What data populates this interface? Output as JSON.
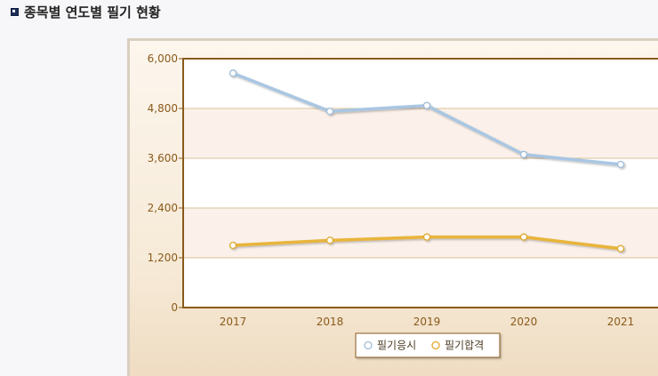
{
  "page": {
    "title": "종목별 연도별 필기 현황"
  },
  "chart_data": {
    "type": "line",
    "title": "",
    "xlabel": "",
    "ylabel": "",
    "categories": [
      "2017",
      "2018",
      "2019",
      "2020",
      "2021"
    ],
    "ylim": [
      0,
      6000
    ],
    "yticks": [
      0,
      1200,
      2400,
      3600,
      4800,
      6000
    ],
    "ytick_labels": [
      "0",
      "1,200",
      "2,400",
      "3,600",
      "4,800",
      "6,000"
    ],
    "grid": true,
    "legend_position": "bottom-center",
    "series": [
      {
        "name": "필기응시",
        "values": [
          5650,
          4730,
          4870,
          3690,
          3450
        ],
        "color": "#a9c6e2",
        "marker": "#d6e6f5"
      },
      {
        "name": "필기합격",
        "values": [
          1500,
          1620,
          1700,
          1700,
          1420
        ],
        "color": "#e8b43a",
        "marker": "#f3d07a"
      }
    ],
    "colors": {
      "axis": "#8a5a1a",
      "band_a": "#ffffff",
      "band_b": "#fbf1ea",
      "gridline": "#d9c29a"
    }
  }
}
